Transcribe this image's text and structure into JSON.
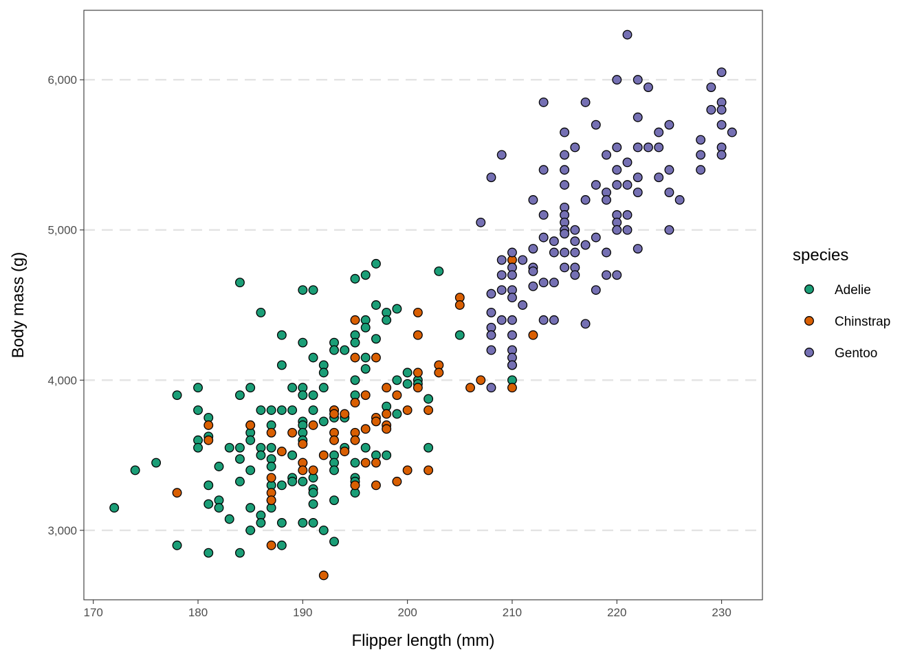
{
  "chart_data": {
    "type": "scatter",
    "xlabel": "Flipper length (mm)",
    "ylabel": "Body mass (g)",
    "xlim": [
      169.1,
      233.9
    ],
    "ylim": [
      2537.5,
      6462.5
    ],
    "x_ticks": [
      170,
      180,
      190,
      200,
      210,
      220,
      230
    ],
    "y_ticks": [
      3000,
      4000,
      5000,
      6000
    ],
    "x_tick_labels": [
      "170",
      "180",
      "190",
      "200",
      "210",
      "220",
      "230"
    ],
    "y_tick_labels": [
      "3,000",
      "4,000",
      "5,000",
      "6,000"
    ],
    "grid": "dashed horizontal major gridlines",
    "legend": {
      "title": "species",
      "position": "right"
    },
    "series": [
      {
        "name": "Adelie",
        "color": "#1b9e77",
        "points": [
          [
            172,
            3150
          ],
          [
            174,
            3400
          ],
          [
            176,
            3450
          ],
          [
            178,
            3900
          ],
          [
            178,
            2900
          ],
          [
            180,
            3950
          ],
          [
            180,
            3800
          ],
          [
            180,
            3600
          ],
          [
            180,
            3550
          ],
          [
            181,
            3750
          ],
          [
            181,
            3625
          ],
          [
            181,
            3300
          ],
          [
            181,
            3175
          ],
          [
            181,
            2850
          ],
          [
            182,
            3425
          ],
          [
            182,
            3200
          ],
          [
            182,
            3150
          ],
          [
            183,
            3550
          ],
          [
            183,
            3075
          ],
          [
            184,
            4650
          ],
          [
            184,
            3900
          ],
          [
            184,
            3550
          ],
          [
            184,
            3475
          ],
          [
            184,
            3325
          ],
          [
            184,
            2850
          ],
          [
            185,
            3950
          ],
          [
            185,
            3700
          ],
          [
            185,
            3650
          ],
          [
            185,
            3600
          ],
          [
            185,
            3400
          ],
          [
            185,
            3150
          ],
          [
            185,
            3000
          ],
          [
            186,
            4450
          ],
          [
            186,
            3800
          ],
          [
            186,
            3550
          ],
          [
            186,
            3500
          ],
          [
            186,
            3100
          ],
          [
            186,
            3050
          ],
          [
            187,
            3800
          ],
          [
            187,
            3700
          ],
          [
            187,
            3550
          ],
          [
            187,
            3475
          ],
          [
            187,
            3425
          ],
          [
            187,
            3300
          ],
          [
            187,
            3200
          ],
          [
            187,
            3150
          ],
          [
            188,
            4300
          ],
          [
            188,
            4100
          ],
          [
            188,
            3800
          ],
          [
            188,
            3300
          ],
          [
            188,
            3050
          ],
          [
            188,
            2900
          ],
          [
            189,
            3950
          ],
          [
            189,
            3800
          ],
          [
            189,
            3500
          ],
          [
            189,
            3350
          ],
          [
            189,
            3325
          ],
          [
            190,
            4600
          ],
          [
            190,
            4250
          ],
          [
            190,
            3950
          ],
          [
            190,
            3900
          ],
          [
            190,
            3725
          ],
          [
            190,
            3700
          ],
          [
            190,
            3650
          ],
          [
            190,
            3600
          ],
          [
            190,
            3450
          ],
          [
            190,
            3325
          ],
          [
            190,
            3050
          ],
          [
            191,
            4600
          ],
          [
            191,
            4150
          ],
          [
            191,
            3900
          ],
          [
            191,
            3800
          ],
          [
            191,
            3350
          ],
          [
            191,
            3275
          ],
          [
            191,
            3250
          ],
          [
            191,
            3175
          ],
          [
            191,
            3050
          ],
          [
            192,
            4100
          ],
          [
            192,
            4050
          ],
          [
            192,
            3950
          ],
          [
            192,
            3725
          ],
          [
            192,
            3000
          ],
          [
            193,
            4250
          ],
          [
            193,
            4200
          ],
          [
            193,
            3800
          ],
          [
            193,
            3750
          ],
          [
            193,
            3500
          ],
          [
            193,
            3450
          ],
          [
            193,
            3400
          ],
          [
            193,
            3200
          ],
          [
            193,
            2925
          ],
          [
            194,
            4200
          ],
          [
            194,
            3750
          ],
          [
            194,
            3550
          ],
          [
            195,
            4675
          ],
          [
            195,
            4300
          ],
          [
            195,
            4250
          ],
          [
            195,
            4000
          ],
          [
            195,
            3900
          ],
          [
            195,
            3450
          ],
          [
            195,
            3350
          ],
          [
            195,
            3325
          ],
          [
            195,
            3250
          ],
          [
            196,
            4700
          ],
          [
            196,
            4400
          ],
          [
            196,
            4350
          ],
          [
            196,
            4150
          ],
          [
            196,
            4075
          ],
          [
            196,
            3550
          ],
          [
            197,
            4775
          ],
          [
            197,
            4500
          ],
          [
            197,
            4275
          ],
          [
            197,
            3500
          ],
          [
            198,
            4450
          ],
          [
            198,
            4400
          ],
          [
            198,
            3825
          ],
          [
            198,
            3500
          ],
          [
            199,
            4475
          ],
          [
            199,
            4000
          ],
          [
            199,
            3775
          ],
          [
            200,
            4050
          ],
          [
            200,
            3975
          ],
          [
            201,
            4000
          ],
          [
            201,
            3975
          ],
          [
            202,
            3875
          ],
          [
            202,
            3550
          ],
          [
            203,
            4725
          ],
          [
            205,
            4300
          ],
          [
            210,
            4000
          ]
        ]
      },
      {
        "name": "Chinstrap",
        "color": "#d95f02",
        "points": [
          [
            178,
            3250
          ],
          [
            181,
            3700
          ],
          [
            181,
            3600
          ],
          [
            185,
            3700
          ],
          [
            187,
            3650
          ],
          [
            187,
            3350
          ],
          [
            187,
            3250
          ],
          [
            187,
            3200
          ],
          [
            187,
            2900
          ],
          [
            188,
            3525
          ],
          [
            189,
            3650
          ],
          [
            190,
            3575
          ],
          [
            190,
            3450
          ],
          [
            190,
            3400
          ],
          [
            191,
            3700
          ],
          [
            191,
            3400
          ],
          [
            192,
            3500
          ],
          [
            192,
            2700
          ],
          [
            193,
            3800
          ],
          [
            193,
            3775
          ],
          [
            193,
            3650
          ],
          [
            193,
            3600
          ],
          [
            194,
            3775
          ],
          [
            194,
            3525
          ],
          [
            195,
            4400
          ],
          [
            195,
            4150
          ],
          [
            195,
            3850
          ],
          [
            195,
            3650
          ],
          [
            195,
            3600
          ],
          [
            195,
            3300
          ],
          [
            196,
            3900
          ],
          [
            196,
            3675
          ],
          [
            196,
            3450
          ],
          [
            197,
            4150
          ],
          [
            197,
            3750
          ],
          [
            197,
            3725
          ],
          [
            197,
            3450
          ],
          [
            197,
            3300
          ],
          [
            198,
            3950
          ],
          [
            198,
            3775
          ],
          [
            198,
            3700
          ],
          [
            198,
            3675
          ],
          [
            199,
            3900
          ],
          [
            199,
            3325
          ],
          [
            200,
            3800
          ],
          [
            200,
            3400
          ],
          [
            201,
            4450
          ],
          [
            201,
            4300
          ],
          [
            201,
            4050
          ],
          [
            201,
            3950
          ],
          [
            202,
            3800
          ],
          [
            202,
            3400
          ],
          [
            203,
            4100
          ],
          [
            203,
            4050
          ],
          [
            205,
            4550
          ],
          [
            205,
            4500
          ],
          [
            206,
            3950
          ],
          [
            207,
            4000
          ],
          [
            210,
            4800
          ],
          [
            210,
            4100
          ],
          [
            210,
            3950
          ],
          [
            212,
            4300
          ]
        ]
      },
      {
        "name": "Gentoo",
        "color": "#7570b3",
        "points": [
          [
            207,
            5050
          ],
          [
            208,
            5350
          ],
          [
            208,
            4575
          ],
          [
            208,
            4450
          ],
          [
            208,
            4350
          ],
          [
            208,
            4300
          ],
          [
            208,
            4200
          ],
          [
            208,
            3950
          ],
          [
            209,
            5500
          ],
          [
            209,
            4800
          ],
          [
            209,
            4700
          ],
          [
            209,
            4600
          ],
          [
            209,
            4400
          ],
          [
            210,
            4850
          ],
          [
            210,
            4750
          ],
          [
            210,
            4700
          ],
          [
            210,
            4600
          ],
          [
            210,
            4550
          ],
          [
            210,
            4400
          ],
          [
            210,
            4300
          ],
          [
            210,
            4200
          ],
          [
            210,
            4150
          ],
          [
            210,
            4100
          ],
          [
            211,
            4800
          ],
          [
            211,
            4500
          ],
          [
            212,
            5200
          ],
          [
            212,
            4875
          ],
          [
            212,
            4750
          ],
          [
            212,
            4725
          ],
          [
            212,
            4625
          ],
          [
            213,
            5850
          ],
          [
            213,
            5400
          ],
          [
            213,
            5100
          ],
          [
            213,
            4950
          ],
          [
            213,
            4650
          ],
          [
            213,
            4400
          ],
          [
            214,
            4925
          ],
          [
            214,
            4850
          ],
          [
            214,
            4650
          ],
          [
            214,
            4400
          ],
          [
            215,
            5650
          ],
          [
            215,
            5500
          ],
          [
            215,
            5400
          ],
          [
            215,
            5300
          ],
          [
            215,
            5150
          ],
          [
            215,
            5100
          ],
          [
            215,
            5050
          ],
          [
            215,
            5000
          ],
          [
            215,
            4975
          ],
          [
            215,
            4850
          ],
          [
            215,
            4750
          ],
          [
            216,
            5550
          ],
          [
            216,
            5000
          ],
          [
            216,
            4925
          ],
          [
            216,
            4850
          ],
          [
            216,
            4750
          ],
          [
            216,
            4700
          ],
          [
            217,
            5850
          ],
          [
            217,
            5200
          ],
          [
            217,
            4900
          ],
          [
            217,
            4375
          ],
          [
            218,
            5700
          ],
          [
            218,
            5300
          ],
          [
            218,
            4950
          ],
          [
            218,
            4600
          ],
          [
            219,
            5500
          ],
          [
            219,
            5250
          ],
          [
            219,
            5200
          ],
          [
            219,
            4850
          ],
          [
            219,
            4700
          ],
          [
            220,
            6000
          ],
          [
            220,
            5550
          ],
          [
            220,
            5400
          ],
          [
            220,
            5300
          ],
          [
            220,
            5100
          ],
          [
            220,
            5050
          ],
          [
            220,
            5000
          ],
          [
            220,
            4700
          ],
          [
            221,
            6300
          ],
          [
            221,
            5450
          ],
          [
            221,
            5300
          ],
          [
            221,
            5100
          ],
          [
            221,
            5000
          ],
          [
            222,
            6000
          ],
          [
            222,
            5750
          ],
          [
            222,
            5550
          ],
          [
            222,
            5350
          ],
          [
            222,
            5250
          ],
          [
            222,
            4875
          ],
          [
            223,
            5950
          ],
          [
            223,
            5550
          ],
          [
            224,
            5650
          ],
          [
            224,
            5550
          ],
          [
            224,
            5350
          ],
          [
            225,
            5700
          ],
          [
            225,
            5400
          ],
          [
            225,
            5250
          ],
          [
            225,
            5000
          ],
          [
            226,
            5200
          ],
          [
            228,
            5600
          ],
          [
            228,
            5500
          ],
          [
            228,
            5400
          ],
          [
            229,
            5950
          ],
          [
            229,
            5800
          ],
          [
            230,
            6050
          ],
          [
            230,
            5850
          ],
          [
            230,
            5800
          ],
          [
            230,
            5700
          ],
          [
            230,
            5550
          ],
          [
            230,
            5500
          ],
          [
            231,
            5650
          ]
        ]
      }
    ]
  }
}
